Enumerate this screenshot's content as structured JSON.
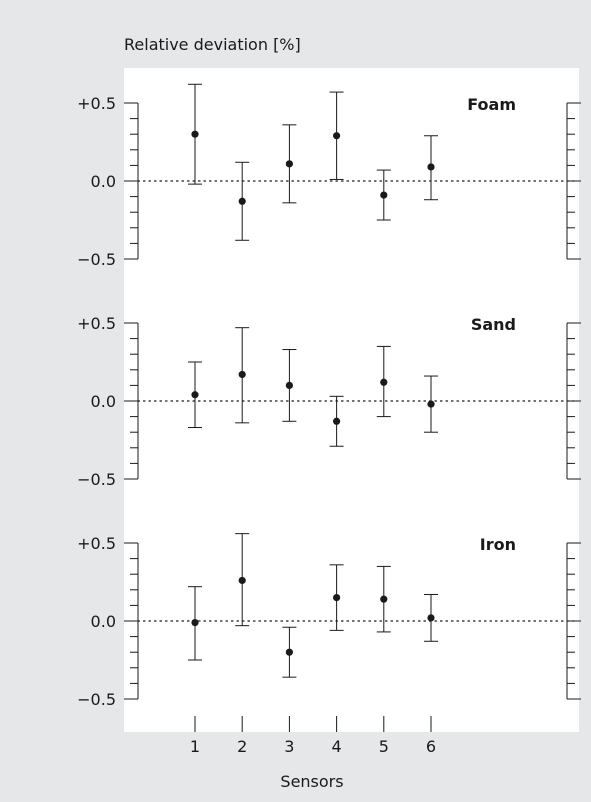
{
  "chart_data": {
    "type": "scatter",
    "subtype": "errorbar",
    "ylabel": "Relative deviation [%]",
    "xlabel": "Sensors",
    "x_ticks": [
      "1",
      "2",
      "3",
      "4",
      "5",
      "6"
    ],
    "y_ticks": [
      "+0.5",
      "0.0",
      "−0.5"
    ],
    "y_tick_values": [
      0.5,
      0.0,
      -0.5
    ],
    "ylim": [
      -0.5,
      0.5
    ],
    "reference_line": {
      "y": 0.0,
      "style": "dotted"
    },
    "background_color": "#e6e7e8",
    "plot_color": "#ffffff",
    "marker_color": "#1a1a1a",
    "panels": [
      {
        "title": "Foam",
        "x": [
          1,
          2,
          3,
          4,
          5,
          6
        ],
        "y": [
          0.3,
          -0.13,
          0.11,
          0.29,
          -0.09,
          0.09
        ],
        "yerr_low": [
          -0.02,
          -0.38,
          -0.14,
          0.01,
          -0.25,
          -0.12
        ],
        "yerr_high": [
          0.62,
          0.12,
          0.36,
          0.57,
          0.07,
          0.29
        ]
      },
      {
        "title": "Sand",
        "x": [
          1,
          2,
          3,
          4,
          5,
          6
        ],
        "y": [
          0.04,
          0.17,
          0.1,
          -0.13,
          0.12,
          -0.02
        ],
        "yerr_low": [
          -0.17,
          -0.14,
          -0.13,
          -0.29,
          -0.1,
          -0.2
        ],
        "yerr_high": [
          0.25,
          0.47,
          0.33,
          0.03,
          0.35,
          0.16
        ]
      },
      {
        "title": "Iron",
        "x": [
          1,
          2,
          3,
          4,
          5,
          6
        ],
        "y": [
          -0.01,
          0.26,
          -0.2,
          0.15,
          0.14,
          0.02
        ],
        "yerr_low": [
          -0.25,
          -0.03,
          -0.36,
          -0.06,
          -0.07,
          -0.13
        ],
        "yerr_high": [
          0.22,
          0.56,
          -0.04,
          0.36,
          0.35,
          0.17
        ]
      }
    ]
  }
}
